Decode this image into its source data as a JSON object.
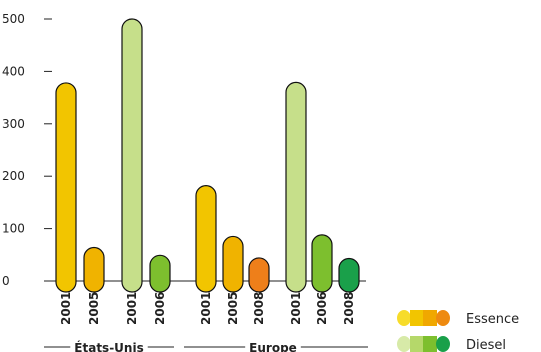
{
  "chart_data": {
    "type": "bar",
    "ylim": [
      0,
      500
    ],
    "yticks": [
      0,
      100,
      200,
      300,
      400,
      500
    ],
    "groups": [
      {
        "label": "États-Unis",
        "bars": [
          {
            "year": "2001",
            "value": 378,
            "fuel": "Essence",
            "color": "#f2c500"
          },
          {
            "year": "2005",
            "value": 64,
            "fuel": "Essence",
            "color": "#f0b300"
          },
          {
            "year": "2001",
            "value": 500,
            "fuel": "Diesel",
            "color": "#c6df8a"
          },
          {
            "year": "2006",
            "value": 49,
            "fuel": "Diesel",
            "color": "#7dbf2e"
          }
        ]
      },
      {
        "label": "Europe",
        "bars": [
          {
            "year": "2001",
            "value": 182,
            "fuel": "Essence",
            "color": "#f2c500"
          },
          {
            "year": "2005",
            "value": 85,
            "fuel": "Essence",
            "color": "#f0b300"
          },
          {
            "year": "2008",
            "value": 44,
            "fuel": "Essence",
            "color": "#ee7f1a"
          },
          {
            "year": "2001",
            "value": 379,
            "fuel": "Diesel",
            "color": "#c6df8a"
          },
          {
            "year": "2006",
            "value": 88,
            "fuel": "Diesel",
            "color": "#7dbf2e"
          },
          {
            "year": "2008",
            "value": 43,
            "fuel": "Diesel",
            "color": "#1aa04a"
          }
        ]
      }
    ],
    "legend": [
      {
        "name": "Essence",
        "colors": [
          "#f7dc2a",
          "#f2c500",
          "#f0a800",
          "#ee8a10"
        ]
      },
      {
        "name": "Diesel",
        "colors": [
          "#d7eaa8",
          "#b5d86a",
          "#7dbf2e",
          "#1aa04a"
        ]
      }
    ],
    "legend_position": "bottom-right",
    "grid": false
  }
}
